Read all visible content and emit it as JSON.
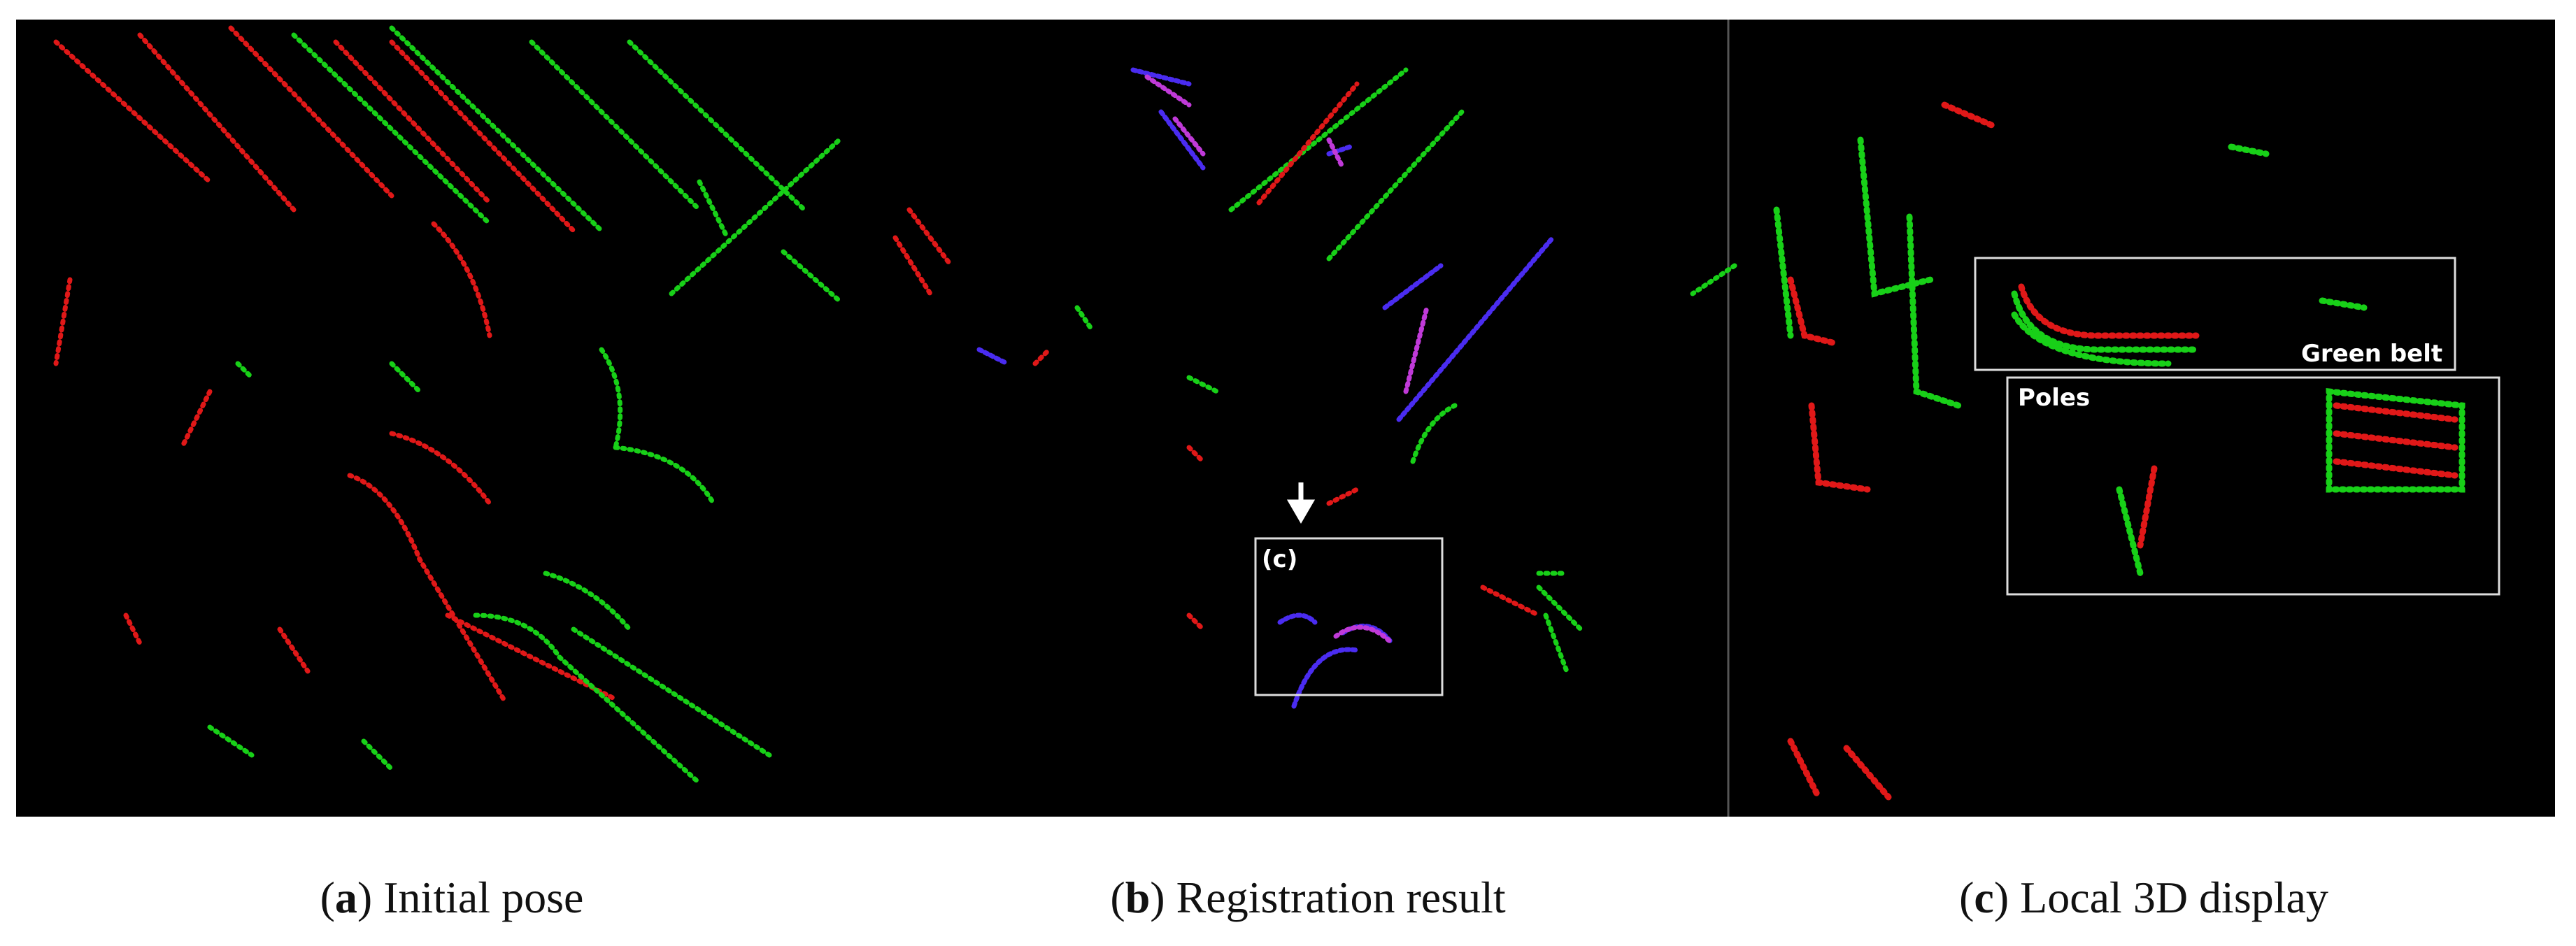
{
  "panels": [
    {
      "caption": {
        "open": "(",
        "letter": "a",
        "rest": ") Initial pose"
      }
    },
    {
      "caption": {
        "open": "(",
        "letter": "b",
        "rest": ") Registration result"
      }
    },
    {
      "caption": {
        "open": "(",
        "letter": "c",
        "rest": ") Local 3D display"
      }
    }
  ],
  "annotations": {
    "zoom_box": "(c)",
    "green_belt": "Green belt",
    "poles": "Poles"
  }
}
